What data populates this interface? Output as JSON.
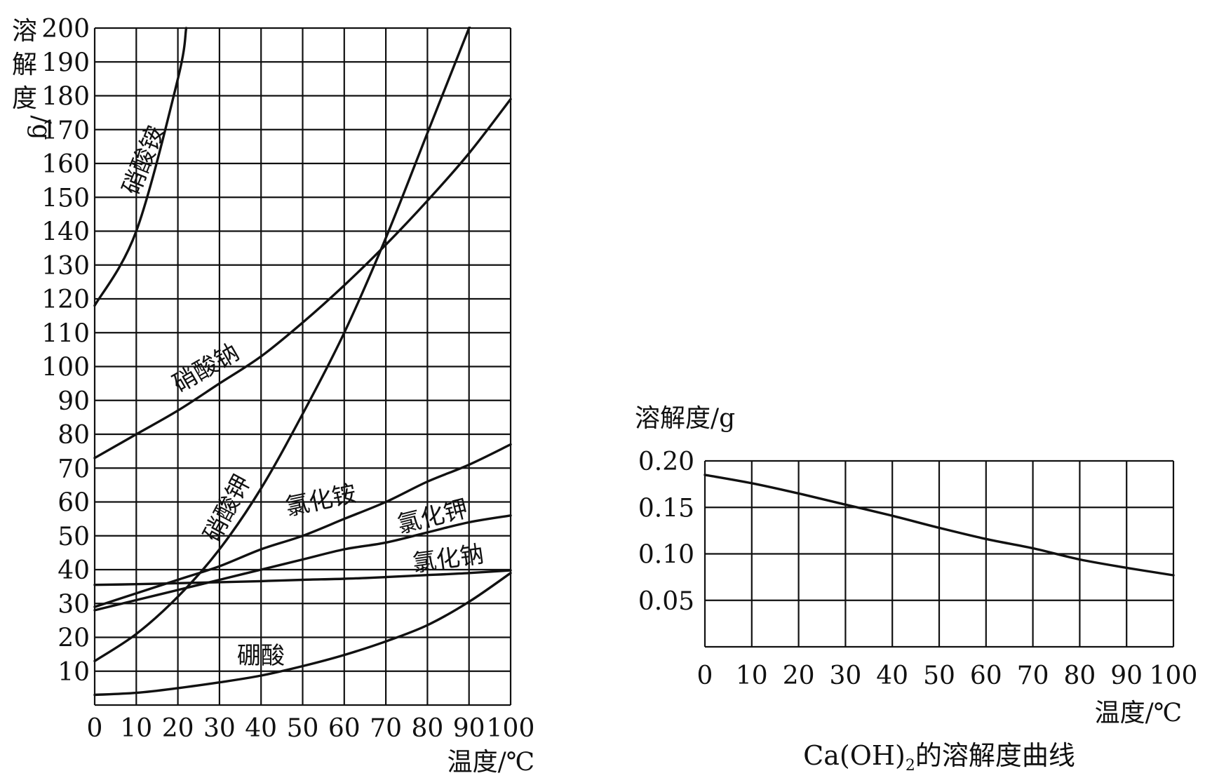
{
  "chart_data": [
    {
      "type": "line",
      "xlabel": "温度/℃",
      "ylabel": "溶解度/g",
      "xlim": [
        0,
        100
      ],
      "ylim": [
        0,
        200
      ],
      "x_ticks": [
        "0",
        "10",
        "20",
        "30",
        "40",
        "50",
        "60",
        "70",
        "80",
        "90",
        "100"
      ],
      "y_ticks": [
        "10",
        "20",
        "30",
        "40",
        "50",
        "60",
        "70",
        "80",
        "90",
        "100",
        "110",
        "120",
        "130",
        "140",
        "150",
        "160",
        "170",
        "180",
        "190",
        "200"
      ],
      "grid": true,
      "series": [
        {
          "name": "硝酸铵",
          "x": [
            0,
            10,
            20,
            22
          ],
          "values": [
            118,
            140,
            185,
            200
          ]
        },
        {
          "name": "硝酸钠",
          "x": [
            0,
            10,
            20,
            30,
            40,
            50,
            60,
            70,
            80,
            90,
            100
          ],
          "values": [
            73,
            80,
            87,
            95,
            103,
            113,
            124,
            136,
            149,
            163,
            179
          ]
        },
        {
          "name": "硝酸钾",
          "x": [
            0,
            10,
            20,
            30,
            40,
            50,
            60,
            70,
            80,
            90,
            91
          ],
          "values": [
            13,
            21,
            32,
            46,
            64,
            86,
            110,
            138,
            169,
            200,
            203
          ]
        },
        {
          "name": "氯化铵",
          "x": [
            0,
            10,
            20,
            30,
            40,
            50,
            60,
            70,
            80,
            90,
            100
          ],
          "values": [
            29,
            33,
            37,
            41,
            46,
            50,
            55,
            60,
            66,
            71,
            77
          ]
        },
        {
          "name": "氯化钾",
          "x": [
            0,
            10,
            20,
            30,
            40,
            50,
            60,
            70,
            80,
            90,
            100
          ],
          "values": [
            28,
            31,
            34,
            37,
            40,
            43,
            46,
            48,
            51,
            54,
            56
          ]
        },
        {
          "name": "氯化钠",
          "x": [
            0,
            10,
            20,
            30,
            40,
            50,
            60,
            70,
            80,
            90,
            100
          ],
          "values": [
            35.5,
            35.7,
            36,
            36.3,
            36.6,
            37,
            37.3,
            37.8,
            38.4,
            39,
            39.8
          ]
        },
        {
          "name": "硼酸",
          "x": [
            0,
            10,
            20,
            30,
            40,
            50,
            60,
            70,
            80,
            90,
            100
          ],
          "values": [
            3,
            3.6,
            5,
            6.7,
            8.7,
            11.5,
            14.8,
            18.8,
            23.6,
            30.5,
            39
          ]
        }
      ]
    },
    {
      "type": "line",
      "title": "Ca(OH)₂的溶解度曲线",
      "xlabel": "温度/℃",
      "ylabel": "溶解度/g",
      "xlim": [
        0,
        100
      ],
      "ylim": [
        0,
        0.2
      ],
      "x_ticks": [
        "0",
        "10",
        "20",
        "30",
        "40",
        "50",
        "60",
        "70",
        "80",
        "90",
        "100"
      ],
      "y_ticks": [
        "0.05",
        "0.10",
        "0.15",
        "0.20"
      ],
      "grid": true,
      "series": [
        {
          "name": "Ca(OH)₂",
          "x": [
            0,
            10,
            20,
            30,
            40,
            50,
            60,
            70,
            80,
            90,
            100
          ],
          "values": [
            0.185,
            0.176,
            0.165,
            0.153,
            0.141,
            0.128,
            0.116,
            0.106,
            0.094,
            0.085,
            0.077
          ]
        }
      ]
    }
  ]
}
